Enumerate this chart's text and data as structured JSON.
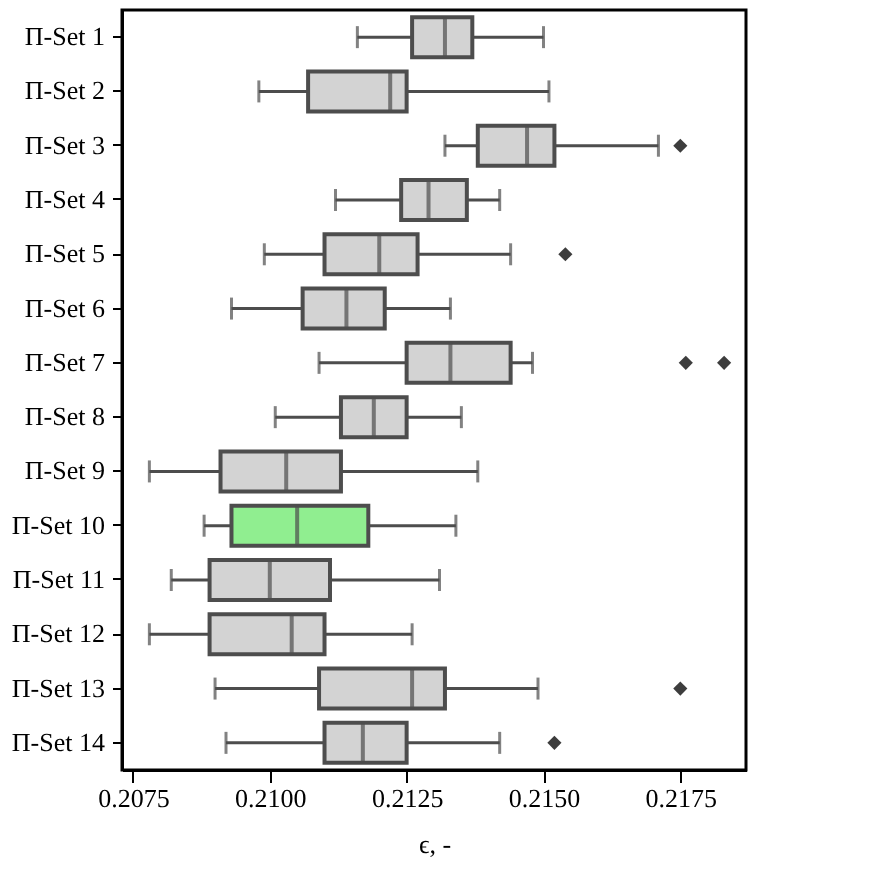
{
  "chart_data": {
    "type": "box",
    "orientation": "horizontal",
    "xlabel": "ϵ, -",
    "categories": [
      "Π-Set 1",
      "Π-Set 2",
      "Π-Set 3",
      "Π-Set 4",
      "Π-Set 5",
      "Π-Set 6",
      "Π-Set 7",
      "Π-Set 8",
      "Π-Set 9",
      "Π-Set 10",
      "Π-Set 11",
      "Π-Set 12",
      "Π-Set 13",
      "Π-Set 14"
    ],
    "boxes": [
      {
        "low": 0.2116,
        "q1": 0.2126,
        "median": 0.2132,
        "q3": 0.2137,
        "high": 0.215
      },
      {
        "low": 0.2098,
        "q1": 0.2107,
        "median": 0.2122,
        "q3": 0.2125,
        "high": 0.2151
      },
      {
        "low": 0.2132,
        "q1": 0.2138,
        "median": 0.2147,
        "q3": 0.2152,
        "high": 0.2171,
        "outliers": [
          0.2175
        ]
      },
      {
        "low": 0.2112,
        "q1": 0.2124,
        "median": 0.2129,
        "q3": 0.2136,
        "high": 0.2142
      },
      {
        "low": 0.2099,
        "q1": 0.211,
        "median": 0.212,
        "q3": 0.2127,
        "high": 0.2144,
        "outliers": [
          0.2154
        ]
      },
      {
        "low": 0.2093,
        "q1": 0.2106,
        "median": 0.2114,
        "q3": 0.2121,
        "high": 0.2133
      },
      {
        "low": 0.2109,
        "q1": 0.2125,
        "median": 0.2133,
        "q3": 0.2144,
        "high": 0.2148,
        "outliers": [
          0.2176,
          0.2183
        ]
      },
      {
        "low": 0.2101,
        "q1": 0.2113,
        "median": 0.2119,
        "q3": 0.2125,
        "high": 0.2135
      },
      {
        "low": 0.2078,
        "q1": 0.2091,
        "median": 0.2103,
        "q3": 0.2113,
        "high": 0.2138
      },
      {
        "low": 0.2088,
        "q1": 0.2093,
        "median": 0.2105,
        "q3": 0.2118,
        "high": 0.2134
      },
      {
        "low": 0.2082,
        "q1": 0.2089,
        "median": 0.21,
        "q3": 0.2111,
        "high": 0.2131
      },
      {
        "low": 0.2078,
        "q1": 0.2089,
        "median": 0.2104,
        "q3": 0.211,
        "high": 0.2126
      },
      {
        "low": 0.209,
        "q1": 0.2109,
        "median": 0.2126,
        "q3": 0.2132,
        "high": 0.2149,
        "outliers": [
          0.2175
        ]
      },
      {
        "low": 0.2092,
        "q1": 0.211,
        "median": 0.2117,
        "q3": 0.2125,
        "high": 0.2142,
        "outliers": [
          0.2152
        ]
      }
    ],
    "colors": [
      "#d3d3d3",
      "#d3d3d3",
      "#d3d3d3",
      "#d3d3d3",
      "#d3d3d3",
      "#d3d3d3",
      "#d3d3d3",
      "#d3d3d3",
      "#d3d3d3",
      "#90ee90",
      "#d3d3d3",
      "#d3d3d3",
      "#d3d3d3",
      "#d3d3d3"
    ],
    "marker": "diamond",
    "xlim": [
      0.2073,
      0.2187
    ],
    "xticks": [
      0.2075,
      {
        "value": 0.21,
        "label": "0.2100"
      },
      0.2125,
      {
        "value": 0.215,
        "label": "0.2150"
      },
      0.2175
    ]
  }
}
